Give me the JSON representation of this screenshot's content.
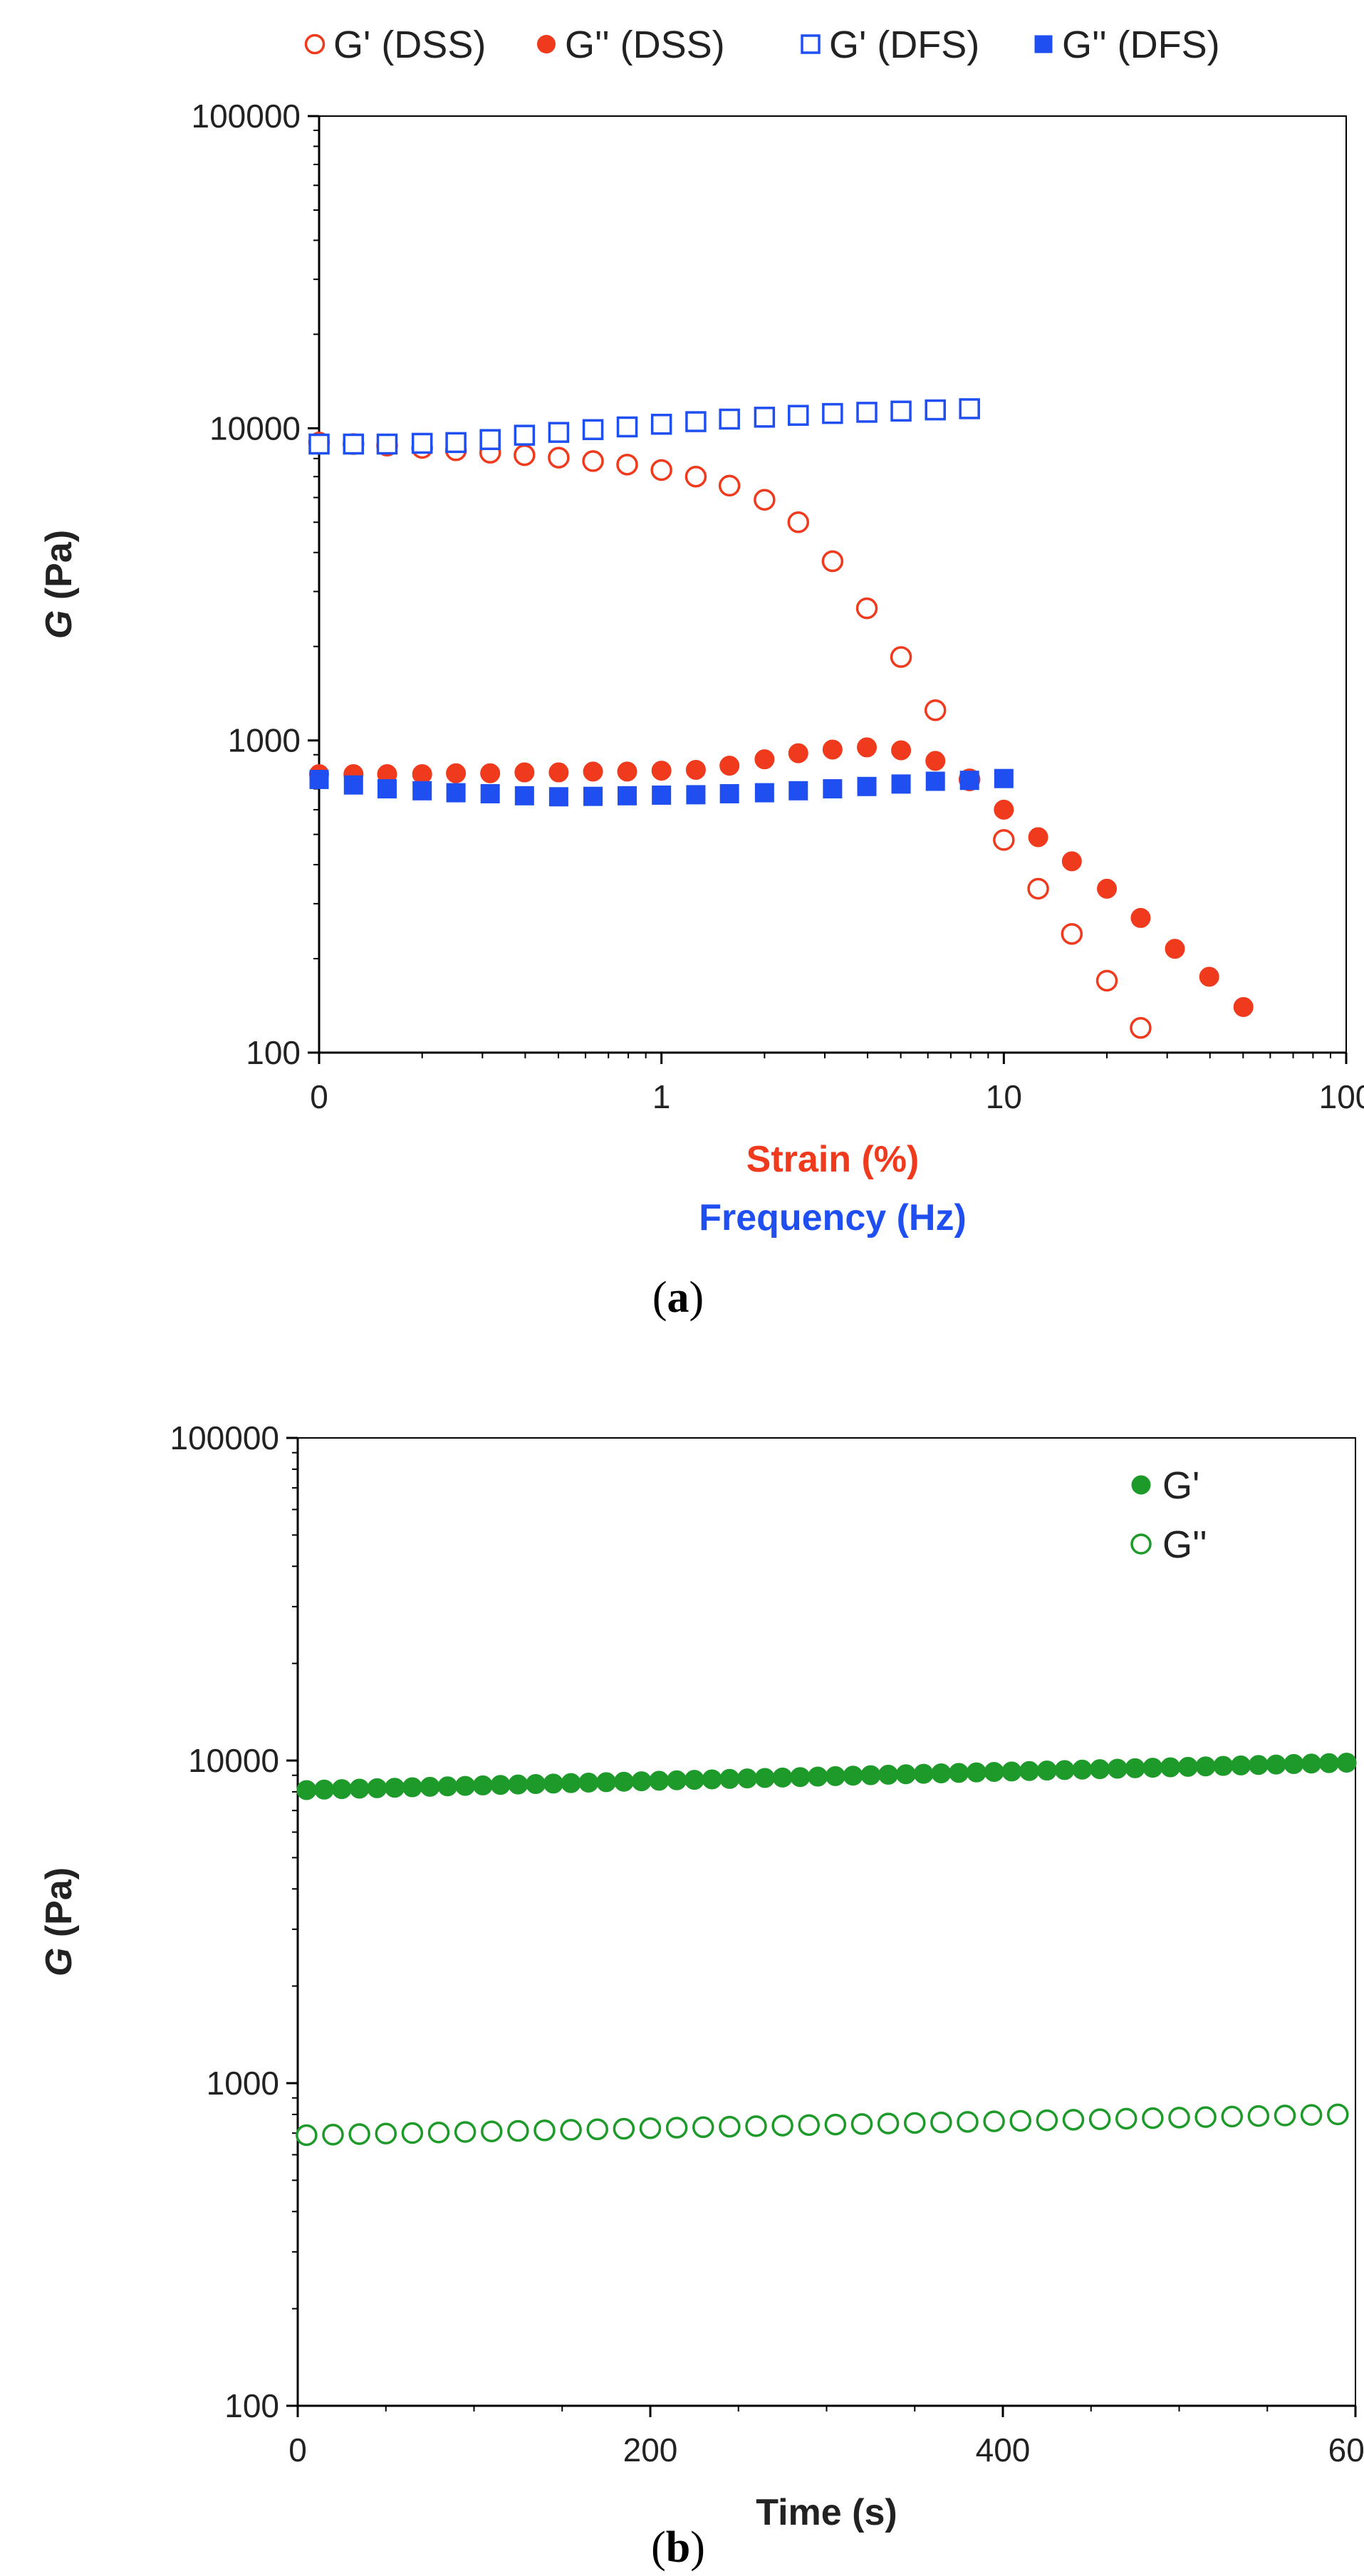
{
  "chart_data": [
    {
      "type": "scatter",
      "panel_label": "(a)",
      "caption": {
        "open": "(",
        "letter": "a",
        "close": ")"
      },
      "ylabel": {
        "symbol": "G",
        "rest": " (Pa)"
      },
      "xlabels": [
        {
          "text": "Strain (%)",
          "color": "#f03a1e"
        },
        {
          "text": "Frequency (Hz)",
          "color": "#1f4ff0"
        }
      ],
      "xscale": "log",
      "yscale": "log",
      "xlim": [
        0.1,
        100
      ],
      "ylim": [
        100,
        100000
      ],
      "xticks": [
        {
          "value": 0.1,
          "label": "0"
        },
        {
          "value": 1,
          "label": "1"
        },
        {
          "value": 10,
          "label": "10"
        },
        {
          "value": 100,
          "label": "100"
        }
      ],
      "yticks": [
        {
          "value": 100,
          "label": "100"
        },
        {
          "value": 1000,
          "label": "1000"
        },
        {
          "value": 10000,
          "label": "10000"
        },
        {
          "value": 100000,
          "label": "100000"
        }
      ],
      "legend_position": "top",
      "series": [
        {
          "name": "G' (DSS)",
          "color": "#f03a1e",
          "marker": "circle",
          "filled": false,
          "x": [
            0.1,
            0.126,
            0.158,
            0.2,
            0.251,
            0.316,
            0.398,
            0.501,
            0.631,
            0.794,
            1.0,
            1.26,
            1.58,
            2.0,
            2.51,
            3.16,
            3.98,
            5.01,
            6.31,
            7.94,
            10.0,
            12.6,
            15.8,
            20.0,
            25.1
          ],
          "y": [
            9000,
            8900,
            8800,
            8650,
            8500,
            8350,
            8200,
            8050,
            7850,
            7650,
            7350,
            7000,
            6550,
            5900,
            5000,
            3750,
            2650,
            1850,
            1250,
            750,
            480,
            335,
            240,
            170,
            120
          ]
        },
        {
          "name": "G'' (DSS)",
          "color": "#f03a1e",
          "marker": "circle",
          "filled": true,
          "x": [
            0.1,
            0.126,
            0.158,
            0.2,
            0.251,
            0.316,
            0.398,
            0.501,
            0.631,
            0.794,
            1.0,
            1.26,
            1.58,
            2.0,
            2.51,
            3.16,
            3.98,
            5.01,
            6.31,
            7.94,
            10.0,
            12.6,
            15.8,
            20.0,
            25.1,
            31.6,
            39.8,
            50.1
          ],
          "y": [
            780,
            780,
            780,
            780,
            785,
            785,
            790,
            790,
            795,
            795,
            800,
            805,
            830,
            870,
            910,
            935,
            950,
            930,
            860,
            740,
            600,
            490,
            410,
            335,
            270,
            215,
            175,
            140
          ]
        },
        {
          "name": "G' (DFS)",
          "color": "#1f4ff0",
          "marker": "square",
          "filled": false,
          "x": [
            0.1,
            0.126,
            0.158,
            0.2,
            0.251,
            0.316,
            0.398,
            0.501,
            0.631,
            0.794,
            1.0,
            1.26,
            1.58,
            2.0,
            2.51,
            3.16,
            3.98,
            5.01,
            6.31,
            7.94
          ],
          "y": [
            8900,
            8900,
            8900,
            8950,
            9000,
            9200,
            9500,
            9700,
            9900,
            10100,
            10300,
            10500,
            10700,
            10850,
            11000,
            11150,
            11250,
            11350,
            11450,
            11550
          ]
        },
        {
          "name": "G'' (DFS)",
          "color": "#1f4ff0",
          "marker": "square",
          "filled": true,
          "x": [
            0.1,
            0.126,
            0.158,
            0.2,
            0.251,
            0.316,
            0.398,
            0.501,
            0.631,
            0.794,
            1.0,
            1.26,
            1.58,
            2.0,
            2.51,
            3.16,
            3.98,
            5.01,
            6.31,
            7.94,
            10.0
          ],
          "y": [
            750,
            720,
            700,
            690,
            680,
            675,
            665,
            660,
            662,
            665,
            668,
            670,
            675,
            680,
            690,
            700,
            712,
            725,
            740,
            745,
            755
          ]
        }
      ]
    },
    {
      "type": "scatter",
      "panel_label": "(b)",
      "caption": {
        "open": "(",
        "letter": "b",
        "close": ")"
      },
      "ylabel": {
        "symbol": "G",
        "rest": " (Pa)"
      },
      "xlabels": [
        {
          "text": "Time (s)",
          "color": "#222222"
        }
      ],
      "xscale": "linear",
      "yscale": "log",
      "xlim": [
        0,
        600
      ],
      "ylim": [
        100,
        100000
      ],
      "xticks": [
        {
          "value": 0,
          "label": "0"
        },
        {
          "value": 200,
          "label": "200"
        },
        {
          "value": 400,
          "label": "400"
        },
        {
          "value": 600,
          "label": "600"
        }
      ],
      "yticks": [
        {
          "value": 100,
          "label": "100"
        },
        {
          "value": 1000,
          "label": "1000"
        },
        {
          "value": 10000,
          "label": "10000"
        },
        {
          "value": 100000,
          "label": "100000"
        }
      ],
      "legend_position": "top-right",
      "series": [
        {
          "name": "G'",
          "color": "#1e9a2a",
          "marker": "circle",
          "filled": true,
          "x_start": 5,
          "x_step": 10,
          "count": 60,
          "y_start": 8100,
          "y_end": 9850
        },
        {
          "name": "G''",
          "color": "#1e9a2a",
          "marker": "circle",
          "filled": false,
          "x_start": 5,
          "x_step": 15,
          "count": 40,
          "y_start": 690,
          "y_end": 800
        }
      ]
    }
  ]
}
